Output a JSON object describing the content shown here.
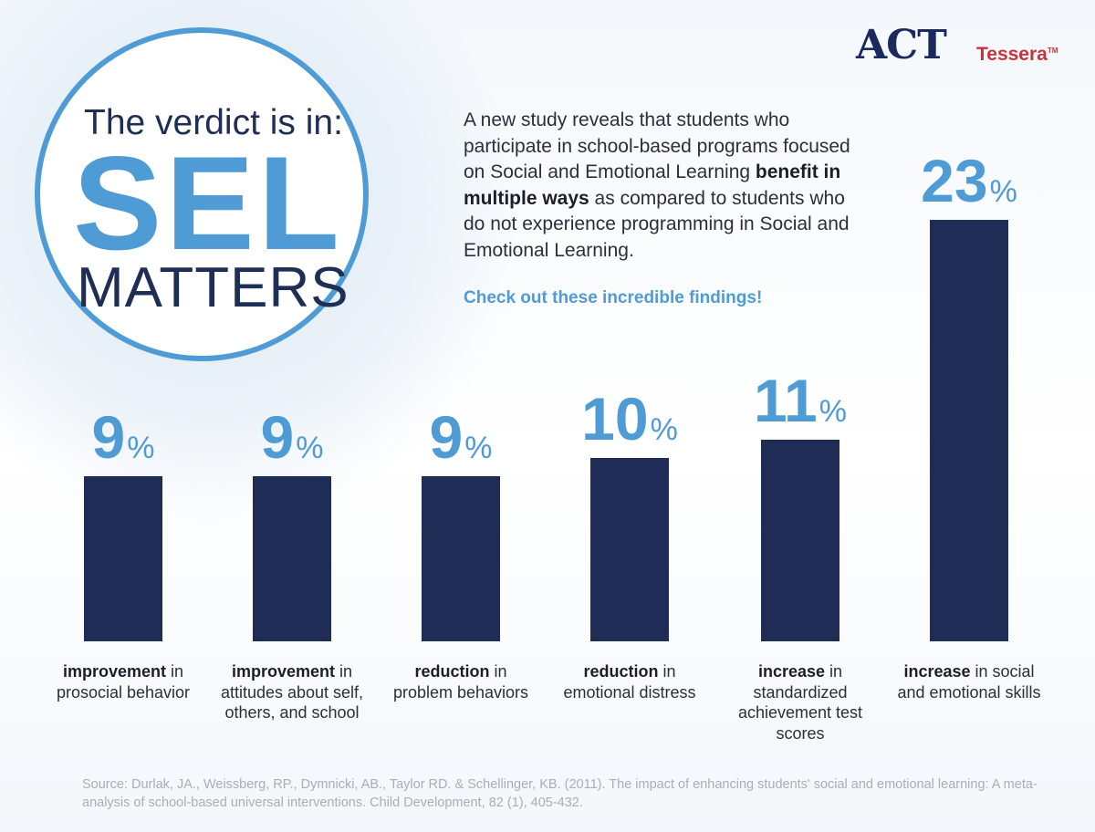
{
  "brand": {
    "name": "ACT",
    "sub": "Tessera",
    "tm": "TM"
  },
  "hero": {
    "line1": "The verdict is in:",
    "line2": "SEL",
    "line3": "MATTERS"
  },
  "intro": {
    "part1": "A new study reveals that students who participate in school-based programs focused on Social and Emotional Learning ",
    "bold": "benefit in multiple ways",
    "part2": " as compared to students who do not experience programming in Social and Emotional Learning."
  },
  "cta": "Check out these incredible findings!",
  "chart_data": {
    "type": "bar",
    "unit": "%",
    "categories": [
      {
        "bold": "improvement",
        "rest": "in prosocial behavior"
      },
      {
        "bold": "improvement",
        "rest": "in attitudes about self, others, and school"
      },
      {
        "bold": "reduction",
        "rest": "in problem behaviors"
      },
      {
        "bold": "reduction",
        "rest": "in emotional distress"
      },
      {
        "bold": "increase",
        "rest": "in standardized achievement test scores"
      },
      {
        "bold": "increase",
        "rest": "in social and emotional skills"
      }
    ],
    "values": [
      9,
      9,
      9,
      10,
      11,
      23
    ],
    "colors": {
      "bar": "#1e2c56",
      "value": "#4e9bd6"
    }
  },
  "source": "Source: Durlak, JA., Weissberg, RP., Dymnicki, AB., Taylor RD. & Schellinger, KB. (2011). The impact of enhancing students' social and emotional learning: A meta-analysis of school-based universal interventions. Child Development, 82 (1), 405-432."
}
